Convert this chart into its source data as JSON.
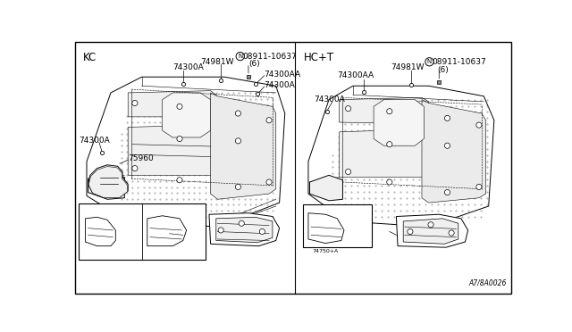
{
  "bg_color": "#ffffff",
  "fig_width": 6.4,
  "fig_height": 3.72,
  "title_left": "KC",
  "title_right": "HC+T",
  "bottom_right_text": "A7/8A0026",
  "lw_main": 0.7,
  "lw_thin": 0.4,
  "fs_label": 6.5,
  "fs_small": 5.5,
  "fs_title": 8.5
}
